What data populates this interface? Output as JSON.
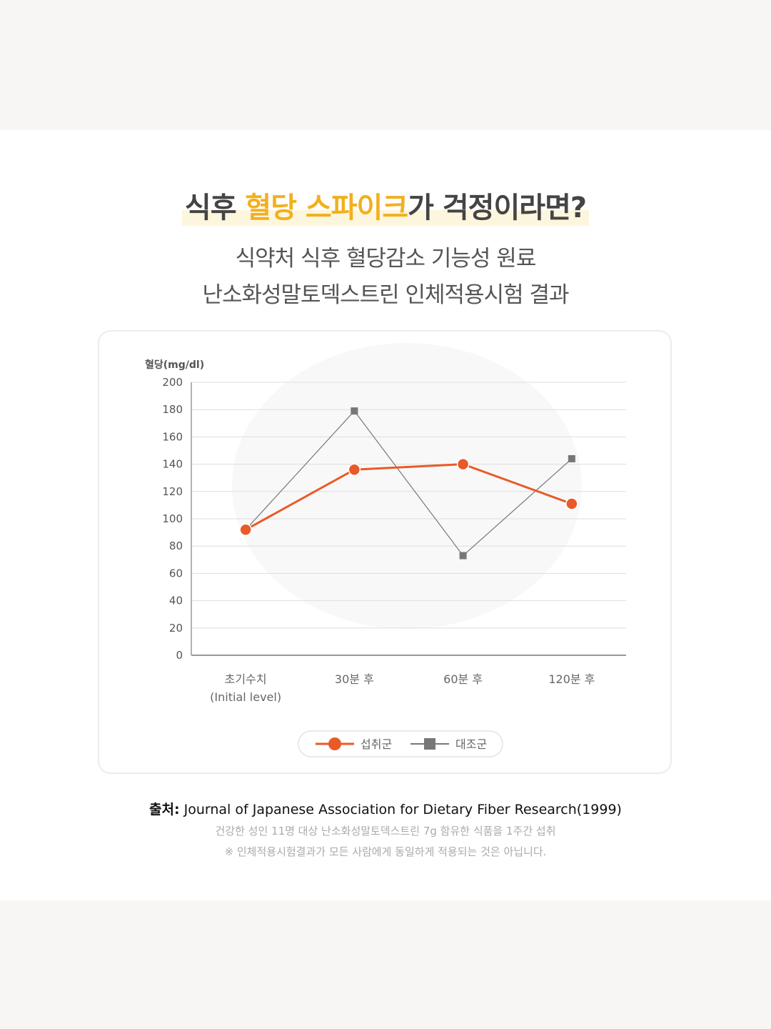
{
  "header": {
    "title_parts": [
      "식후 ",
      "혈당 스파이크",
      "가 걱정이라면?"
    ],
    "subtitle_lines": [
      "식약처 식후 혈당감소 기능성 원료",
      "난소화성말토덱스트린 인체적용시험 결과"
    ]
  },
  "chart_data": {
    "type": "line",
    "y_label": "혈당(mg/dl)",
    "categories": [
      "초기수치\n(Initial level)",
      "30분 후",
      "60분 후",
      "120분 후"
    ],
    "series": [
      {
        "name": "섭취군",
        "color": "#e95a28",
        "marker": "circle",
        "values": [
          92,
          136,
          140,
          111
        ]
      },
      {
        "name": "대조군",
        "color": "#777777",
        "marker": "square",
        "values": [
          92,
          179,
          73,
          144
        ]
      }
    ],
    "ylim": [
      0,
      200
    ],
    "yticks": [
      0,
      20,
      40,
      60,
      80,
      100,
      120,
      140,
      160,
      180,
      200
    ],
    "grid": true
  },
  "source": {
    "label": "출처:",
    "citation": "Journal of Japanese Association for Dietary Fiber Research(1999)",
    "notes": [
      "건강한 성인 11명 대상 난소화성말토덱스트린 7g 함유한 식품을 1주간 섭취",
      "※ 인체적용시험결과가 모든 사람에게 동일하게 적용되는 것은 아닙니다."
    ]
  }
}
